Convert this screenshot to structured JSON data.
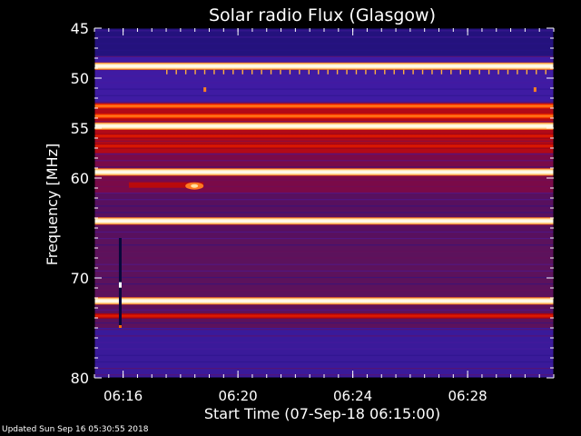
{
  "chart_data": {
    "type": "heatmap",
    "title": "Solar radio Flux (Glasgow)",
    "xlabel": "Start Time (07-Sep-18 06:15:00)",
    "ylabel": "Frequency [MHz]",
    "xlim_minutes": [
      0,
      16
    ],
    "ylim": [
      45,
      80
    ],
    "x_ticks": [
      {
        "label": "06:16",
        "minutes": 1
      },
      {
        "label": "06:20",
        "minutes": 5
      },
      {
        "label": "06:24",
        "minutes": 9
      },
      {
        "label": "06:28",
        "minutes": 13
      }
    ],
    "y_ticks": [
      45,
      50,
      55,
      60,
      70,
      80
    ],
    "background_level": "low",
    "bands": [
      {
        "freq_mhz": 48.8,
        "intensity": "high"
      },
      {
        "freq_mhz": 52.8,
        "intensity": "medium-high"
      },
      {
        "freq_mhz": 53.8,
        "intensity": "medium-high"
      },
      {
        "freq_mhz": 54.8,
        "intensity": "high"
      },
      {
        "freq_mhz": 55.8,
        "intensity": "medium"
      },
      {
        "freq_mhz": 56.8,
        "intensity": "medium"
      },
      {
        "freq_mhz": 59.4,
        "intensity": "high"
      },
      {
        "freq_mhz": 64.3,
        "intensity": "high"
      },
      {
        "freq_mhz": 72.3,
        "intensity": "high"
      },
      {
        "freq_mhz": 73.8,
        "intensity": "medium"
      }
    ],
    "features": [
      {
        "type": "vertical-artifact",
        "time_minutes": 0.9,
        "freq_range": [
          66,
          75
        ]
      },
      {
        "type": "burst",
        "time_range_minutes": [
          1.2,
          3.8
        ],
        "freq_mhz": 60.7
      }
    ],
    "colormap": [
      "#1a0f78",
      "#4b1ca8",
      "#8a0f45",
      "#c80a05",
      "#ff4a00",
      "#ffd080",
      "#ffffff"
    ]
  },
  "footer": {
    "updated": "Updated Sun Sep 16 05:30:55 2018"
  }
}
